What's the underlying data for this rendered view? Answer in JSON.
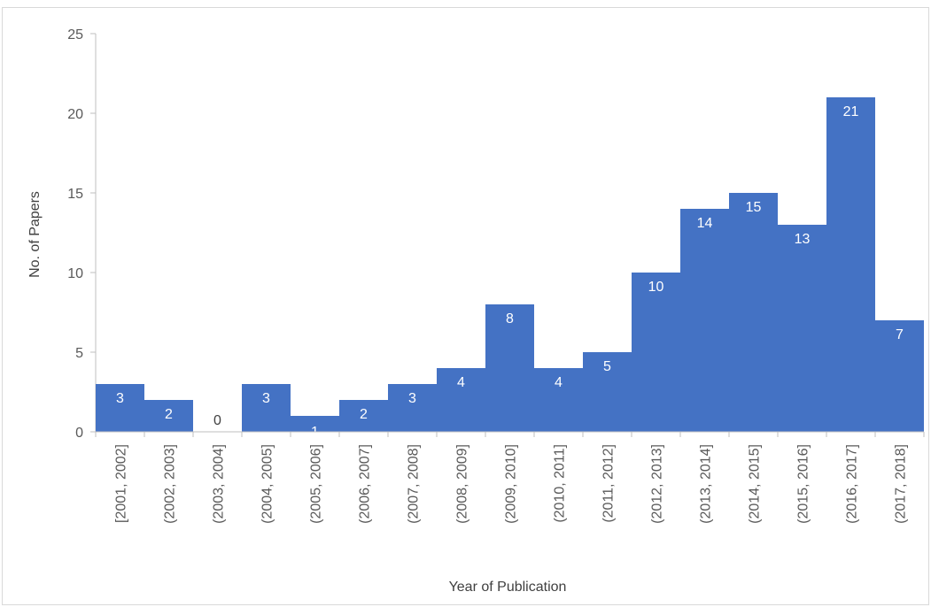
{
  "chart_data": {
    "type": "bar",
    "categories": [
      "[2001, 2002]",
      "(2002, 2003]",
      "(2003, 2004]",
      "(2004, 2005]",
      "(2005, 2006]",
      "(2006, 2007]",
      "(2007, 2008]",
      "(2008, 2009]",
      "(2009, 2010]",
      "(2010, 2011]",
      "(2011, 2012]",
      "(2012, 2013]",
      "(2013, 2014]",
      "(2014, 2015]",
      "(2015, 2016]",
      "(2016, 2017]",
      "(2017, 2018]"
    ],
    "values": [
      3,
      2,
      0,
      3,
      1,
      2,
      3,
      4,
      8,
      4,
      5,
      10,
      14,
      15,
      13,
      21,
      7
    ],
    "title": "",
    "xlabel": "Year of Publication",
    "ylabel": "No. of Papers",
    "ylim": [
      0,
      25
    ],
    "yticks": [
      0,
      5,
      10,
      15,
      20,
      25
    ],
    "grid": false,
    "legend": "none",
    "bar_color": "#4472c4",
    "label_color_inside": "#ffffff",
    "label_color_outside": "#404040",
    "tick_color": "#595959",
    "axis_color": "#bfbfbf"
  }
}
